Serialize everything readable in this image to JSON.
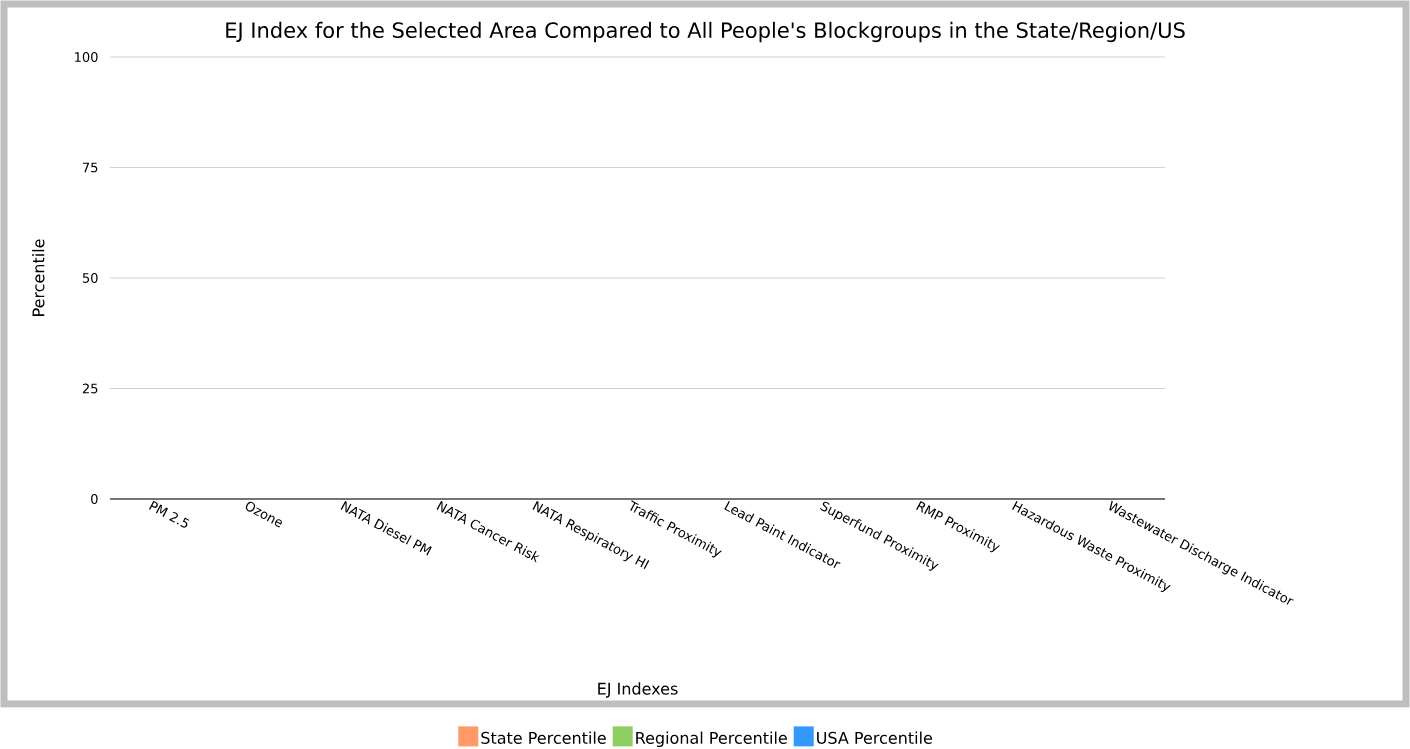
{
  "chart_data": {
    "type": "bar",
    "title": "EJ Index for the Selected Area Compared to All People's Blockgroups in the State/Region/US",
    "xlabel": "EJ Indexes",
    "ylabel": "Percentile",
    "categories": [
      "PM 2.5",
      "Ozone",
      "NATA Diesel PM",
      "NATA Cancer Risk",
      "NATA Respiratory HI",
      "Traffic Proximity",
      "Lead Paint Indicator",
      "Superfund Proximity",
      "RMP Proximity",
      "Hazardous Waste Proximity",
      "Wastewater Discharge Indicator"
    ],
    "series": [
      {
        "name": "State Percentile",
        "color": "#ff9966",
        "values": [
          null,
          null,
          null,
          null,
          null,
          null,
          null,
          null,
          null,
          null,
          null
        ]
      },
      {
        "name": "Regional Percentile",
        "color": "#8fce63",
        "values": [
          null,
          null,
          null,
          null,
          null,
          null,
          null,
          null,
          null,
          null,
          null
        ]
      },
      {
        "name": "USA Percentile",
        "color": "#3399ff",
        "values": [
          null,
          null,
          null,
          null,
          null,
          null,
          null,
          null,
          null,
          null,
          null
        ]
      }
    ],
    "ylim": [
      0,
      100
    ],
    "yticks": [
      0,
      25,
      50,
      75,
      100
    ],
    "grid": "y",
    "legend": "bottom"
  }
}
